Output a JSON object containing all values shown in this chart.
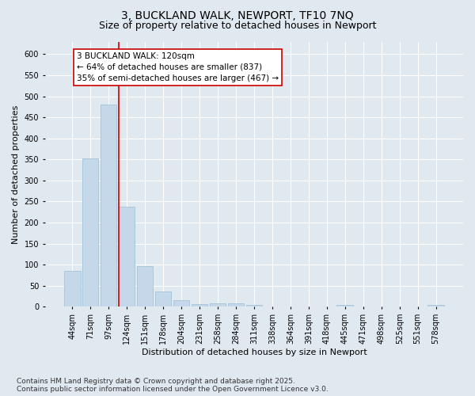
{
  "title_line1": "3, BUCKLAND WALK, NEWPORT, TF10 7NQ",
  "title_line2": "Size of property relative to detached houses in Newport",
  "xlabel": "Distribution of detached houses by size in Newport",
  "ylabel": "Number of detached properties",
  "categories": [
    "44sqm",
    "71sqm",
    "97sqm",
    "124sqm",
    "151sqm",
    "178sqm",
    "204sqm",
    "231sqm",
    "258sqm",
    "284sqm",
    "311sqm",
    "338sqm",
    "364sqm",
    "391sqm",
    "418sqm",
    "445sqm",
    "471sqm",
    "498sqm",
    "525sqm",
    "551sqm",
    "578sqm"
  ],
  "values": [
    85,
    352,
    480,
    237,
    97,
    37,
    16,
    7,
    8,
    8,
    5,
    0,
    0,
    0,
    0,
    5,
    0,
    0,
    0,
    0,
    5
  ],
  "bar_color": "#c5d8ea",
  "bar_edgecolor": "#9bbdd4",
  "vline_color": "#cc0000",
  "annotation_text": "3 BUCKLAND WALK: 120sqm\n← 64% of detached houses are smaller (837)\n35% of semi-detached houses are larger (467) →",
  "annotation_box_facecolor": "#ffffff",
  "annotation_box_edgecolor": "#cc0000",
  "ylim": [
    0,
    630
  ],
  "yticks": [
    0,
    50,
    100,
    150,
    200,
    250,
    300,
    350,
    400,
    450,
    500,
    550,
    600
  ],
  "background_color": "#e0e8f0",
  "plot_background": "#e0e8f0",
  "footer_line1": "Contains HM Land Registry data © Crown copyright and database right 2025.",
  "footer_line2": "Contains public sector information licensed under the Open Government Licence v3.0.",
  "title_fontsize": 10,
  "subtitle_fontsize": 9,
  "axis_label_fontsize": 8,
  "tick_fontsize": 7,
  "annotation_fontsize": 7.5,
  "footer_fontsize": 6.5
}
